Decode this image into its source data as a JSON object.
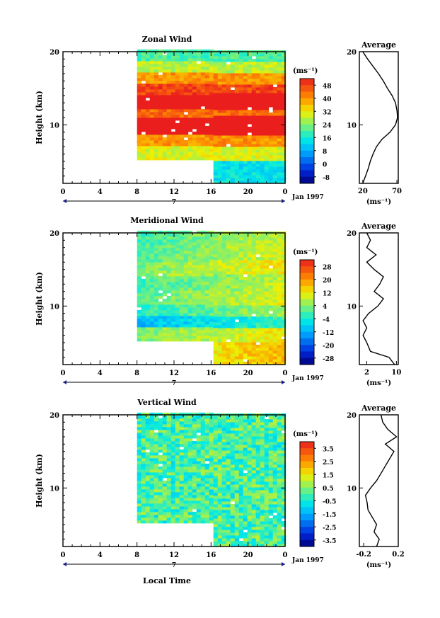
{
  "figure": {
    "xlabel_bottom": "Local Time",
    "date_label": "Jan 1997",
    "day_label": "7",
    "height_label": "Height (km)",
    "unit_label": "(ms⁻¹)",
    "average_title": "Average"
  },
  "chart_data": [
    {
      "type": "heatmap",
      "title": "Zonal Wind",
      "xlabel": "",
      "ylabel": "Height (km)",
      "xlim": [
        0,
        24
      ],
      "ylim": [
        2,
        20
      ],
      "xticks": [
        "0",
        "4",
        "8",
        "12",
        "16",
        "20",
        "0"
      ],
      "yticks": [
        "10",
        "20"
      ],
      "data_coverage": {
        "start_hour": 8,
        "end_hour": 24,
        "bottom_km": 5.2,
        "bottom_km_after_16h": 2.0,
        "top_km": 20
      },
      "colorbar": {
        "unit": "(ms⁻¹)",
        "ticks": [
          "48",
          "40",
          "32",
          "24",
          "16",
          "8",
          "0",
          "-8"
        ],
        "min": -12,
        "max": 52
      },
      "profile_bands_km": [
        [
          2,
          5,
          14
        ],
        [
          5,
          7,
          30
        ],
        [
          7,
          8.5,
          40
        ],
        [
          8.5,
          11,
          58
        ],
        [
          11,
          12,
          44
        ],
        [
          12,
          14,
          60
        ],
        [
          14,
          15.5,
          48
        ],
        [
          15.5,
          17,
          40
        ],
        [
          17,
          18.5,
          28
        ],
        [
          18.5,
          20,
          20
        ]
      ],
      "average": {
        "title": "Average",
        "xlabel": "(ms⁻¹)",
        "xticks": [
          "20",
          "70"
        ],
        "xlim": [
          15,
          72
        ],
        "yticks": [
          "10",
          "20"
        ],
        "profile": [
          [
            2,
            20
          ],
          [
            3,
            24
          ],
          [
            4,
            28
          ],
          [
            5,
            31
          ],
          [
            6,
            35
          ],
          [
            7,
            40
          ],
          [
            8,
            48
          ],
          [
            9,
            60
          ],
          [
            10,
            68
          ],
          [
            11,
            71
          ],
          [
            12,
            70
          ],
          [
            13,
            68
          ],
          [
            14,
            63
          ],
          [
            15,
            56
          ],
          [
            16,
            50
          ],
          [
            17,
            43
          ],
          [
            18,
            35
          ],
          [
            19,
            27
          ],
          [
            20,
            20
          ]
        ]
      }
    },
    {
      "type": "heatmap",
      "title": "Meridional Wind",
      "xlabel": "",
      "ylabel": "Height (km)",
      "xlim": [
        0,
        24
      ],
      "ylim": [
        2,
        20
      ],
      "xticks": [
        "0",
        "4",
        "8",
        "12",
        "16",
        "20",
        "0"
      ],
      "yticks": [
        "10",
        "20"
      ],
      "data_coverage": {
        "start_hour": 8,
        "end_hour": 24,
        "bottom_km": 5.2,
        "bottom_km_after_16h": 2.0,
        "top_km": 20
      },
      "colorbar": {
        "unit": "(ms⁻¹)",
        "ticks": [
          "28",
          "20",
          "12",
          "4",
          "-4",
          "-12",
          "-20",
          "-28"
        ],
        "min": -32,
        "max": 32
      },
      "profile_bands_km": [
        [
          2,
          5,
          12
        ],
        [
          5,
          7,
          8
        ],
        [
          7,
          8.5,
          -6
        ],
        [
          8.5,
          10,
          2
        ],
        [
          10,
          12,
          6
        ],
        [
          12,
          14,
          4
        ],
        [
          14,
          16,
          8
        ],
        [
          16,
          18,
          5
        ],
        [
          18,
          20,
          4
        ]
      ],
      "average": {
        "title": "Average",
        "xlabel": "(ms⁻¹)",
        "xticks": [
          "2",
          "10"
        ],
        "xlim": [
          0,
          10.5
        ],
        "yticks": [
          "10",
          "20"
        ],
        "profile": [
          [
            2,
            9.5
          ],
          [
            3,
            8
          ],
          [
            3.8,
            3
          ],
          [
            5,
            2
          ],
          [
            6,
            1
          ],
          [
            7,
            2
          ],
          [
            8,
            1
          ],
          [
            9,
            2.5
          ],
          [
            10,
            5
          ],
          [
            11,
            6.5
          ],
          [
            12,
            4
          ],
          [
            13,
            5.5
          ],
          [
            14,
            6.5
          ],
          [
            15,
            4
          ],
          [
            16,
            2
          ],
          [
            17,
            4.5
          ],
          [
            18,
            2
          ],
          [
            19,
            3
          ],
          [
            20,
            2
          ]
        ]
      }
    },
    {
      "type": "heatmap",
      "title": "Vertical Wind",
      "xlabel": "Local Time",
      "ylabel": "Height (km)",
      "xlim": [
        0,
        24
      ],
      "ylim": [
        2,
        20
      ],
      "xticks": [
        "0",
        "4",
        "8",
        "12",
        "16",
        "20",
        "0"
      ],
      "yticks": [
        "10",
        "20"
      ],
      "data_coverage": {
        "start_hour": 8,
        "end_hour": 24,
        "bottom_km": 5.2,
        "bottom_km_after_16h": 2.0,
        "top_km": 20
      },
      "colorbar": {
        "unit": "(ms⁻¹)",
        "ticks": [
          "3.5",
          "2.5",
          "1.5",
          "0.5",
          "-0.5",
          "-1.5",
          "-2.5",
          "-3.5"
        ],
        "min": -4,
        "max": 4
      },
      "profile_bands_km": [
        [
          2,
          20,
          0
        ]
      ],
      "average": {
        "title": "Average",
        "xlabel": "(ms⁻¹)",
        "xticks": [
          "-0.2",
          "0.2"
        ],
        "xlim": [
          -0.25,
          0.2
        ],
        "yticks": [
          "10",
          "20"
        ],
        "profile": [
          [
            2,
            -0.05
          ],
          [
            3,
            -0.02
          ],
          [
            4,
            -0.08
          ],
          [
            5,
            -0.05
          ],
          [
            6,
            -0.1
          ],
          [
            7,
            -0.15
          ],
          [
            8,
            -0.16
          ],
          [
            9,
            -0.18
          ],
          [
            10,
            -0.12
          ],
          [
            11,
            -0.05
          ],
          [
            12,
            0.0
          ],
          [
            13,
            0.05
          ],
          [
            14,
            0.1
          ],
          [
            15,
            0.15
          ],
          [
            16,
            0.05
          ],
          [
            17,
            0.18
          ],
          [
            18,
            0.08
          ],
          [
            19,
            0.02
          ],
          [
            20,
            0.0
          ]
        ]
      }
    }
  ]
}
